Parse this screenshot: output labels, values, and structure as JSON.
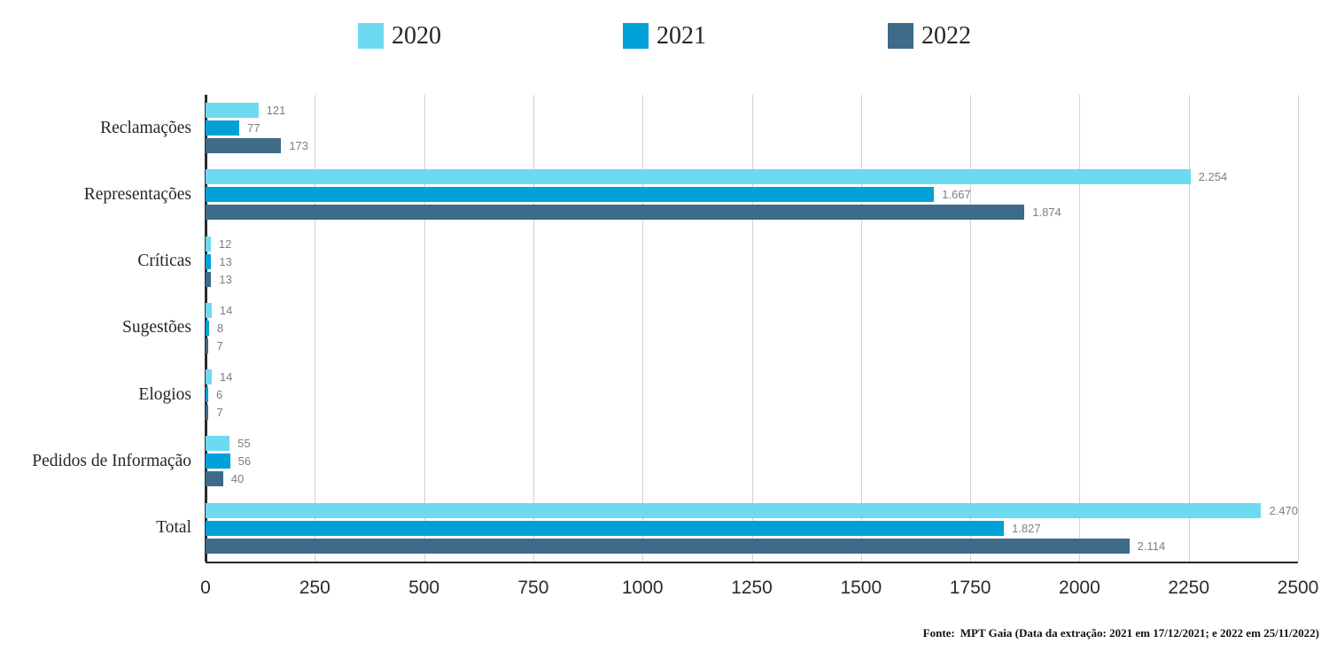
{
  "chart_data": {
    "type": "bar",
    "orientation": "horizontal",
    "title": "",
    "xlabel": "",
    "ylabel": "",
    "categories": [
      "Reclamações",
      "Representações",
      "Críticas",
      "Sugestões",
      "Elogios",
      "Pedidos de Informação",
      "Total"
    ],
    "series": [
      {
        "name": "2020",
        "color": "#6edaf2",
        "values": [
          121,
          2254,
          12,
          14,
          14,
          55,
          2470
        ],
        "labels": [
          "121",
          "2.254",
          "12",
          "14",
          "14",
          "55",
          "2.470"
        ]
      },
      {
        "name": "2021",
        "color": "#00a1d8",
        "values": [
          77,
          1667,
          13,
          8,
          6,
          56,
          1827
        ],
        "labels": [
          "77",
          "1.667",
          "13",
          "8",
          "6",
          "56",
          "1.827"
        ]
      },
      {
        "name": "2022",
        "color": "#3d6b88",
        "values": [
          173,
          1874,
          13,
          7,
          7,
          40,
          2114
        ],
        "labels": [
          "173",
          "1.874",
          "13",
          "7",
          "7",
          "40",
          "2.114"
        ]
      }
    ],
    "x_ticks": [
      0,
      250,
      500,
      750,
      1000,
      1250,
      1500,
      1750,
      2000,
      2250,
      2500
    ],
    "x_tick_labels": [
      "0",
      "250",
      "500",
      "750",
      "1000",
      "1250",
      "1500",
      "1750",
      "2000",
      "2250",
      "2500"
    ],
    "xlim": [
      0,
      2500
    ],
    "grid": true,
    "legend_position": "top",
    "colors": {
      "axis": "#262626",
      "gridline": "#d2d2d2",
      "value_label": "#7e7e7e",
      "text": "#262626"
    }
  },
  "footer": {
    "source_prefix": "Fonte:",
    "source_text": "MPT Gaia (Data da extração: 2021 em 17/12/2021; e 2022 em 25/11/2022)"
  }
}
